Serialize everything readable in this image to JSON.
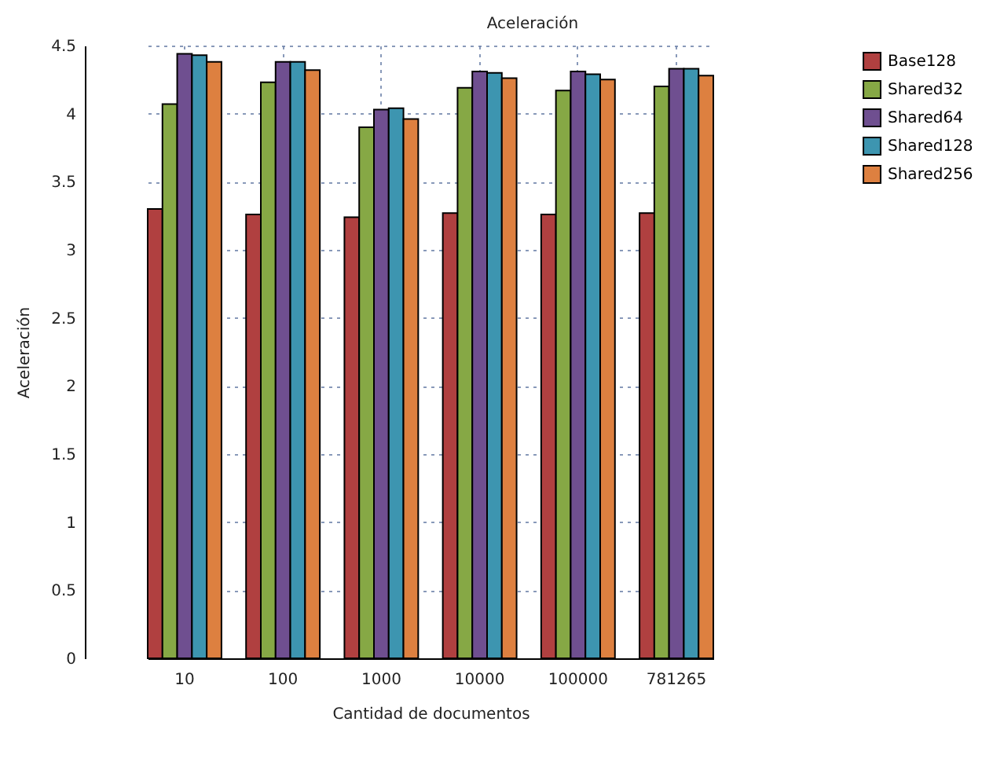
{
  "chart_data": {
    "type": "bar",
    "title": "Aceleración",
    "xlabel": "Cantidad de documentos",
    "ylabel": "Aceleración",
    "categories": [
      "10",
      "100",
      "1000",
      "10000",
      "100000",
      "781265"
    ],
    "series": [
      {
        "name": "Base128",
        "color": "#b04040",
        "values": [
          3.3,
          3.26,
          3.24,
          3.27,
          3.26,
          3.27
        ]
      },
      {
        "name": "Shared32",
        "color": "#86a845",
        "values": [
          4.07,
          4.23,
          3.9,
          4.19,
          4.17,
          4.2
        ]
      },
      {
        "name": "Shared64",
        "color": "#6f4f90",
        "values": [
          4.44,
          4.38,
          4.03,
          4.31,
          4.31,
          4.33
        ]
      },
      {
        "name": "Shared128",
        "color": "#3d95b0",
        "values": [
          4.43,
          4.38,
          4.04,
          4.3,
          4.29,
          4.33
        ]
      },
      {
        "name": "Shared256",
        "color": "#dd8040",
        "values": [
          4.38,
          4.32,
          3.96,
          4.26,
          4.25,
          4.28
        ]
      }
    ],
    "ylim": [
      0,
      4.5
    ],
    "yticks": [
      0,
      0.5,
      1,
      1.5,
      2,
      2.5,
      3,
      3.5,
      4,
      4.5
    ],
    "grid": true,
    "legend": "top right"
  }
}
